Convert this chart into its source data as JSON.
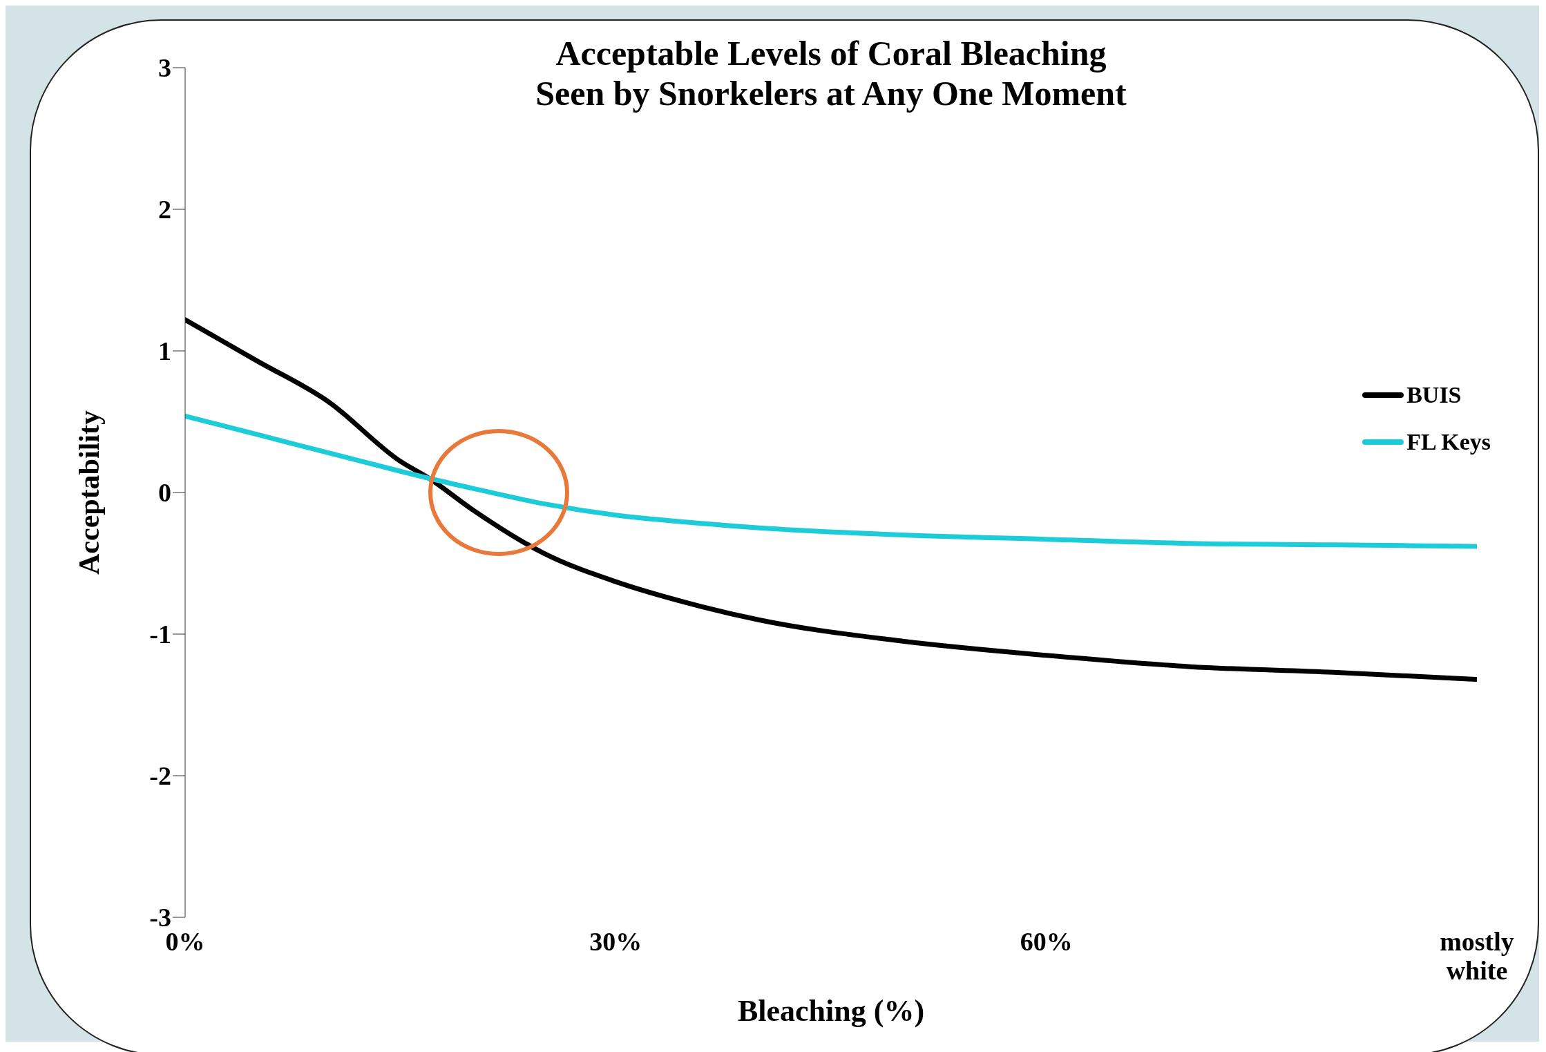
{
  "chart_data": {
    "type": "line",
    "title": "Acceptable Levels of Coral Bleaching\nSeen by Snorkelers at Any One Moment",
    "xlabel": "Bleaching (%)",
    "ylabel": "Acceptability",
    "x": [
      0,
      5,
      10,
      15,
      17,
      20,
      25,
      30,
      35,
      40,
      50,
      60,
      70,
      80,
      90
    ],
    "series": [
      {
        "name": "BUIS",
        "color": "#000000",
        "values": [
          1.22,
          0.93,
          0.64,
          0.22,
          0.1,
          -0.12,
          -0.43,
          -0.63,
          -0.78,
          -0.9,
          -1.05,
          -1.15,
          -1.23,
          -1.27,
          -1.32
        ]
      },
      {
        "name": "FL Keys",
        "color": "#1ecbd8",
        "values": [
          0.54,
          0.41,
          0.28,
          0.15,
          0.1,
          0.03,
          -0.08,
          -0.16,
          -0.21,
          -0.25,
          -0.3,
          -0.33,
          -0.36,
          -0.37,
          -0.38
        ]
      }
    ],
    "xlim": [
      0,
      90
    ],
    "xticks": [
      {
        "value": 0,
        "label": "0%"
      },
      {
        "value": 30,
        "label": "30%"
      },
      {
        "value": 60,
        "label": "60%"
      },
      {
        "value": 90,
        "label": "mostly white"
      }
    ],
    "ylim": [
      -3,
      3
    ],
    "yticks": [
      -3,
      -2,
      -1,
      0,
      1,
      2,
      3
    ],
    "grid": false,
    "legend": "right",
    "marker": "none",
    "line_style": "solid"
  }
}
